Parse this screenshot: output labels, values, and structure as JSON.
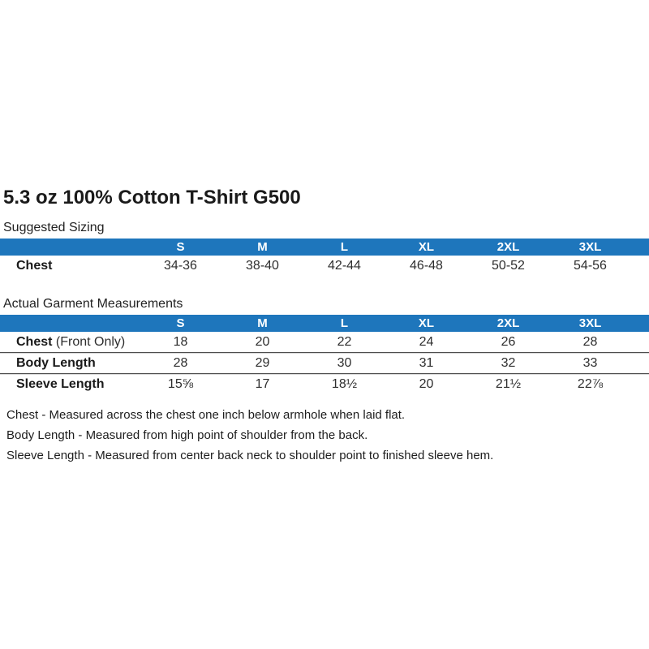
{
  "page": {
    "title": "5.3 oz 100% Cotton T-Shirt G500"
  },
  "colors": {
    "header_blue": "#1e76bc",
    "header_text": "#ffffff"
  },
  "suggested": {
    "heading": "Suggested Sizing",
    "columns": [
      "S",
      "M",
      "L",
      "XL",
      "2XL",
      "3XL"
    ],
    "rows": [
      {
        "label_bold": "Chest",
        "label_rest": "",
        "values": [
          "34-36",
          "38-40",
          "42-44",
          "46-48",
          "50-52",
          "54-56"
        ]
      }
    ]
  },
  "actual": {
    "heading": "Actual Garment Measurements",
    "columns": [
      "S",
      "M",
      "L",
      "XL",
      "2XL",
      "3XL"
    ],
    "rows": [
      {
        "label_bold": "Chest",
        "label_rest": " (Front Only)",
        "values": [
          "18",
          "20",
          "22",
          "24",
          "26",
          "28"
        ]
      },
      {
        "label_bold": "Body Length",
        "label_rest": "",
        "values": [
          "28",
          "29",
          "30",
          "31",
          "32",
          "33"
        ]
      },
      {
        "label_bold": "Sleeve Length",
        "label_rest": "",
        "values": [
          "15⅝",
          "17",
          "18½",
          "20",
          "21½",
          "22⅞"
        ]
      }
    ]
  },
  "notes": [
    "Chest - Measured across the chest one inch below armhole when laid flat.",
    "Body Length - Measured from high point of shoulder from the back.",
    "Sleeve Length - Measured from center back neck to shoulder point to finished sleeve hem."
  ]
}
